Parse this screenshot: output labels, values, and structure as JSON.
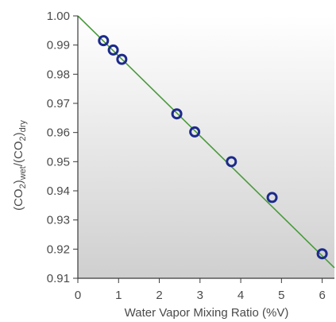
{
  "chart_data": {
    "type": "scatter",
    "xlabel": "Water Vapor Mixing Ratio (%V)",
    "ylabel": {
      "p1": "(CO",
      "sub1": "2",
      "p2": ")",
      "sub2": "wet",
      "p3": "/(CO",
      "sub3": "2",
      "p4": ")",
      "sub4": "dry"
    },
    "xlim": [
      0,
      6.3
    ],
    "ylim": [
      0.91,
      1.0
    ],
    "xticks": [
      0,
      1,
      2,
      3,
      4,
      5,
      6
    ],
    "xtick_labels": [
      "0",
      "1",
      "2",
      "3",
      "4",
      "5",
      "6"
    ],
    "yticks": [
      0.91,
      0.92,
      0.93,
      0.94,
      0.95,
      0.96,
      0.97,
      0.98,
      0.99,
      1.0
    ],
    "ytick_labels": [
      "0.91",
      "0.92",
      "0.93",
      "0.94",
      "0.95",
      "0.96",
      "0.97",
      "0.98",
      "0.99",
      "1.00"
    ],
    "series": [
      {
        "type": "scatter",
        "marker": "open-circle",
        "color": "#1c2a8c",
        "x": [
          0.63,
          0.87,
          1.08,
          2.43,
          2.87,
          3.77,
          4.77,
          6.0
        ],
        "y": [
          0.9915,
          0.9883,
          0.9851,
          0.9664,
          0.9602,
          0.95,
          0.9377,
          0.9184
        ]
      },
      {
        "type": "line",
        "color": "#4a9a3c",
        "x": [
          0,
          6.3
        ],
        "y": [
          1.0,
          0.9136
        ]
      }
    ],
    "background_gradient": [
      "#ffffff",
      "#cfcfcf"
    ],
    "grid": false
  }
}
